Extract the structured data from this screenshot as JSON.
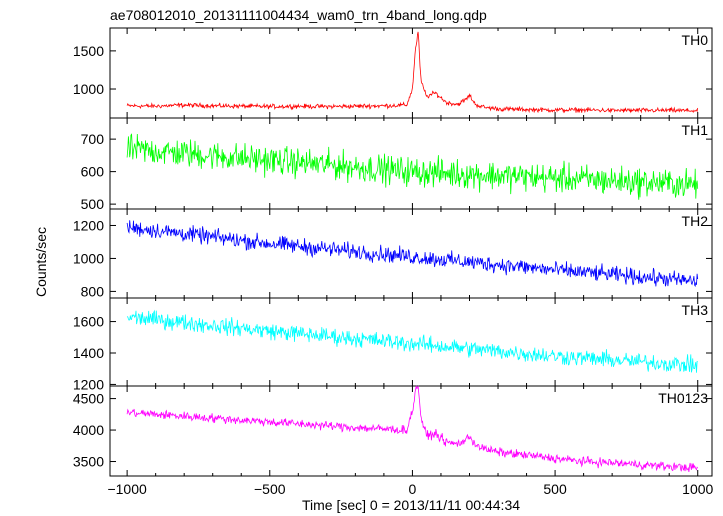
{
  "chart_data": {
    "type": "line",
    "title": "ae708012010_20131111004434_wam0_trn_4band_long.qdp",
    "xlabel": "Time [sec] 0 = 2013/11/11 00:44:34",
    "ylabel": "Counts/sec",
    "xlim": [
      -1060,
      1050
    ],
    "x_ticks": [
      -1000,
      -500,
      0,
      500,
      1000
    ],
    "x_tick_labels": [
      "−1000",
      "−500",
      "0",
      "500",
      "1000"
    ],
    "grid": false,
    "legend": "none",
    "panels": [
      {
        "name": "TH0",
        "color": "#ff0000",
        "ylim": [
          620,
          1800
        ],
        "y_ticks": [
          1000,
          1500
        ],
        "series": {
          "x": [
            -1000,
            -900,
            -800,
            -700,
            -600,
            -500,
            -400,
            -300,
            -200,
            -100,
            -20,
            0,
            10,
            20,
            30,
            50,
            80,
            120,
            160,
            190,
            200,
            220,
            250,
            300,
            400,
            500,
            600,
            700,
            800,
            900,
            1000
          ],
          "y": [
            780,
            775,
            790,
            780,
            775,
            770,
            775,
            770,
            775,
            780,
            790,
            1000,
            1500,
            1750,
            1100,
            900,
            950,
            820,
            800,
            870,
            920,
            800,
            760,
            740,
            730,
            725,
            725,
            720,
            720,
            720,
            715
          ],
          "noise": 25
        }
      },
      {
        "name": "TH1",
        "color": "#00ff00",
        "ylim": [
          485,
          765
        ],
        "y_ticks": [
          500,
          600,
          700
        ],
        "series": {
          "x": [
            -1000,
            -500,
            0,
            500,
            1000
          ],
          "y": [
            670,
            635,
            600,
            580,
            560
          ],
          "noise": 38
        }
      },
      {
        "name": "TH2",
        "color": "#0000ff",
        "ylim": [
          760,
          1300
        ],
        "y_ticks": [
          800,
          1000,
          1200
        ],
        "series": {
          "x": [
            -1000,
            -500,
            0,
            500,
            1000
          ],
          "y": [
            1190,
            1090,
            1010,
            930,
            860
          ],
          "noise": 42
        }
      },
      {
        "name": "TH3",
        "color": "#00ffff",
        "ylim": [
          1190,
          1750
        ],
        "y_ticks": [
          1200,
          1400,
          1600
        ],
        "series": {
          "x": [
            -1000,
            -500,
            0,
            500,
            1000
          ],
          "y": [
            1630,
            1540,
            1460,
            1380,
            1320
          ],
          "noise": 45
        }
      },
      {
        "name": "TH0123",
        "color": "#ff00ff",
        "ylim": [
          3270,
          4700
        ],
        "y_ticks": [
          3500,
          4000,
          4500
        ],
        "series": {
          "x": [
            -1000,
            -800,
            -600,
            -400,
            -200,
            -20,
            0,
            10,
            20,
            30,
            50,
            80,
            120,
            160,
            190,
            200,
            220,
            250,
            300,
            400,
            500,
            600,
            700,
            800,
            900,
            1000
          ],
          "y": [
            4280,
            4220,
            4160,
            4100,
            4040,
            4000,
            4300,
            4600,
            4720,
            4200,
            3900,
            3950,
            3800,
            3780,
            3850,
            3900,
            3780,
            3700,
            3650,
            3600,
            3550,
            3500,
            3480,
            3450,
            3420,
            3400
          ],
          "noise": 60
        }
      }
    ]
  }
}
